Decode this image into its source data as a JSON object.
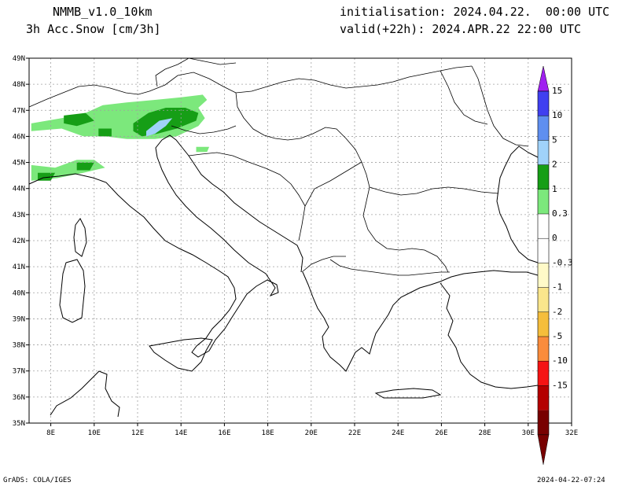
{
  "header": {
    "model": "NMMB_v1.0_10km",
    "field": "3h Acc.Snow [cm/3h]",
    "init": "initialisation: 2024.04.22.  00:00 UTC",
    "valid": "valid(+22h): 2024.APR.22 22:00 UTC"
  },
  "map": {
    "lon_range": [
      7,
      32
    ],
    "lat_range": [
      35,
      49
    ],
    "lon_ticks": [
      {
        "v": 8,
        "label": "8E"
      },
      {
        "v": 10,
        "label": "10E"
      },
      {
        "v": 12,
        "label": "12E"
      },
      {
        "v": 14,
        "label": "14E"
      },
      {
        "v": 16,
        "label": "16E"
      },
      {
        "v": 18,
        "label": "18E"
      },
      {
        "v": 20,
        "label": "20E"
      },
      {
        "v": 22,
        "label": "22E"
      },
      {
        "v": 24,
        "label": "24E"
      },
      {
        "v": 26,
        "label": "26E"
      },
      {
        "v": 28,
        "label": "28E"
      },
      {
        "v": 30,
        "label": "30E"
      },
      {
        "v": 32,
        "label": "32E"
      }
    ],
    "lat_ticks": [
      {
        "v": 35,
        "label": "35N"
      },
      {
        "v": 36,
        "label": "36N"
      },
      {
        "v": 37,
        "label": "37N"
      },
      {
        "v": 38,
        "label": "38N"
      },
      {
        "v": 39,
        "label": "39N"
      },
      {
        "v": 40,
        "label": "40N"
      },
      {
        "v": 41,
        "label": "41N"
      },
      {
        "v": 42,
        "label": "42N"
      },
      {
        "v": 43,
        "label": "43N"
      },
      {
        "v": 44,
        "label": "44N"
      },
      {
        "v": 45,
        "label": "45N"
      },
      {
        "v": 46,
        "label": "46N"
      },
      {
        "v": 47,
        "label": "47N"
      },
      {
        "v": 48,
        "label": "48N"
      },
      {
        "v": 49,
        "label": "49N"
      }
    ],
    "grid": true,
    "snow_regions": [
      {
        "level": "0.3",
        "color": "#7ce87c",
        "poly": [
          [
            7.1,
            46.5
          ],
          [
            8.5,
            46.7
          ],
          [
            9.6,
            46.9
          ],
          [
            10.4,
            47.2
          ],
          [
            11.5,
            47.3
          ],
          [
            12.8,
            47.4
          ],
          [
            14.0,
            47.5
          ],
          [
            15.0,
            47.6
          ],
          [
            15.2,
            47.4
          ],
          [
            14.8,
            47.1
          ],
          [
            15.1,
            46.7
          ],
          [
            14.8,
            46.4
          ],
          [
            13.8,
            46.0
          ],
          [
            12.8,
            45.9
          ],
          [
            11.5,
            45.9
          ],
          [
            10.5,
            46.0
          ],
          [
            9.5,
            46.0
          ],
          [
            8.5,
            46.3
          ],
          [
            7.1,
            46.2
          ]
        ]
      },
      {
        "level": "0.3",
        "color": "#7ce87c",
        "poly": [
          [
            7.1,
            44.9
          ],
          [
            8.2,
            44.8
          ],
          [
            9.2,
            45.1
          ],
          [
            10.0,
            45.1
          ],
          [
            10.5,
            44.8
          ],
          [
            9.5,
            44.6
          ],
          [
            8.3,
            44.4
          ],
          [
            7.1,
            44.3
          ]
        ]
      },
      {
        "level": "0.3",
        "color": "#7ce87c",
        "poly": [
          [
            14.7,
            45.6
          ],
          [
            15.3,
            45.6
          ],
          [
            15.2,
            45.4
          ],
          [
            14.7,
            45.4
          ]
        ]
      },
      {
        "level": "1",
        "color": "#169e16",
        "poly": [
          [
            8.6,
            46.8
          ],
          [
            9.6,
            46.9
          ],
          [
            10.0,
            46.6
          ],
          [
            9.2,
            46.4
          ],
          [
            8.6,
            46.5
          ]
        ]
      },
      {
        "level": "1",
        "color": "#169e16",
        "poly": [
          [
            11.8,
            46.5
          ],
          [
            12.5,
            46.9
          ],
          [
            13.3,
            47.1
          ],
          [
            14.2,
            47.1
          ],
          [
            14.8,
            46.9
          ],
          [
            14.7,
            46.6
          ],
          [
            13.8,
            46.3
          ],
          [
            12.9,
            46.1
          ],
          [
            12.2,
            46.0
          ],
          [
            11.8,
            46.2
          ]
        ]
      },
      {
        "level": "1",
        "color": "#169e16",
        "poly": [
          [
            10.2,
            46.3
          ],
          [
            10.8,
            46.3
          ],
          [
            10.8,
            46.0
          ],
          [
            10.2,
            46.0
          ]
        ]
      },
      {
        "level": "1",
        "color": "#169e16",
        "poly": [
          [
            7.4,
            44.6
          ],
          [
            8.2,
            44.6
          ],
          [
            8.0,
            44.3
          ],
          [
            7.4,
            44.3
          ]
        ]
      },
      {
        "level": "1",
        "color": "#169e16",
        "poly": [
          [
            9.2,
            45.0
          ],
          [
            10.0,
            45.0
          ],
          [
            9.8,
            44.7
          ],
          [
            9.2,
            44.7
          ]
        ]
      },
      {
        "level": "2",
        "color": "#a0d2fa",
        "poly": [
          [
            12.4,
            46.2
          ],
          [
            13.0,
            46.6
          ],
          [
            13.6,
            46.7
          ],
          [
            13.3,
            46.4
          ],
          [
            12.8,
            46.1
          ],
          [
            12.4,
            46.0
          ]
        ]
      }
    ]
  },
  "colorbar": {
    "labels": [
      "15",
      "10",
      "5",
      "2",
      "1",
      "0.3",
      "0",
      "-0.3",
      "-1",
      "-2",
      "-5",
      "-10",
      "-15"
    ],
    "colors": [
      "#4040f0",
      "#5f8ff0",
      "#a0d2fa",
      "#169e16",
      "#7ce87c",
      "#ffffff",
      "#ffffff",
      "#fffac8",
      "#fae68c",
      "#f5be3c",
      "#fa8c3c",
      "#f51414",
      "#b40000",
      "#780000"
    ],
    "top_arrow_color": "#a020f0",
    "bottom_arrow_color": "#780000"
  },
  "footer": {
    "left": "GrADS: COLA/IGES",
    "right": "2024-04-22-07:24"
  }
}
